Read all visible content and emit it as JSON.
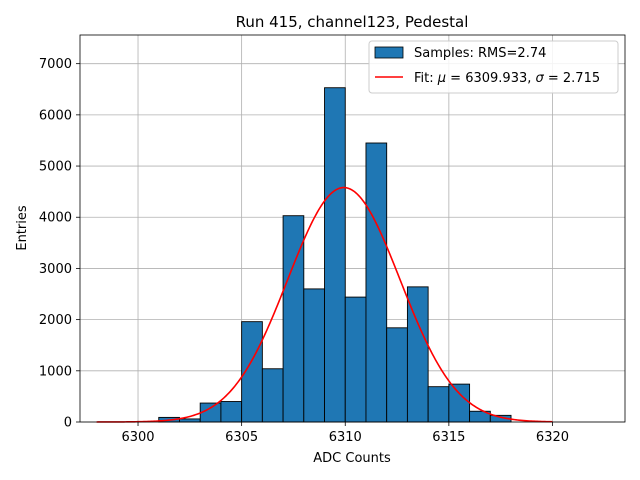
{
  "chart_data": {
    "type": "bar",
    "title": "Run 415, channel123, Pedestal",
    "xlabel": "ADC Counts",
    "ylabel": "Entries",
    "xlim": [
      6297.2,
      6323.5
    ],
    "ylim": [
      0,
      7560
    ],
    "x_ticks": [
      6300,
      6305,
      6310,
      6315,
      6320
    ],
    "y_ticks": [
      0,
      1000,
      2000,
      3000,
      4000,
      5000,
      6000,
      7000
    ],
    "grid": true,
    "legend_position": "top-right",
    "bar_color": "#1f77b4",
    "fit_color": "#ff0000",
    "histogram": {
      "name": "Samples: RMS=2.74",
      "bin_edges": [
        6301,
        6302,
        6303,
        6304,
        6305,
        6306,
        6307,
        6308,
        6309,
        6310,
        6311,
        6312,
        6313,
        6314,
        6315,
        6316,
        6317,
        6318
      ],
      "values": [
        90,
        60,
        370,
        400,
        1960,
        1040,
        4030,
        2600,
        6530,
        2440,
        5450,
        1840,
        2640,
        690,
        740,
        210,
        130
      ]
    },
    "fit": {
      "name": "Fit: μ = 6309.933, σ = 2.715",
      "name_prefix": "Fit: ",
      "mu_symbol": "μ",
      "mu_text": " = 6309.933, ",
      "sigma_symbol": "σ",
      "sigma_text": " = 2.715",
      "mu": 6309.933,
      "sigma": 2.715,
      "amplitude": 4580,
      "x_range": [
        6298,
        6320
      ]
    }
  }
}
